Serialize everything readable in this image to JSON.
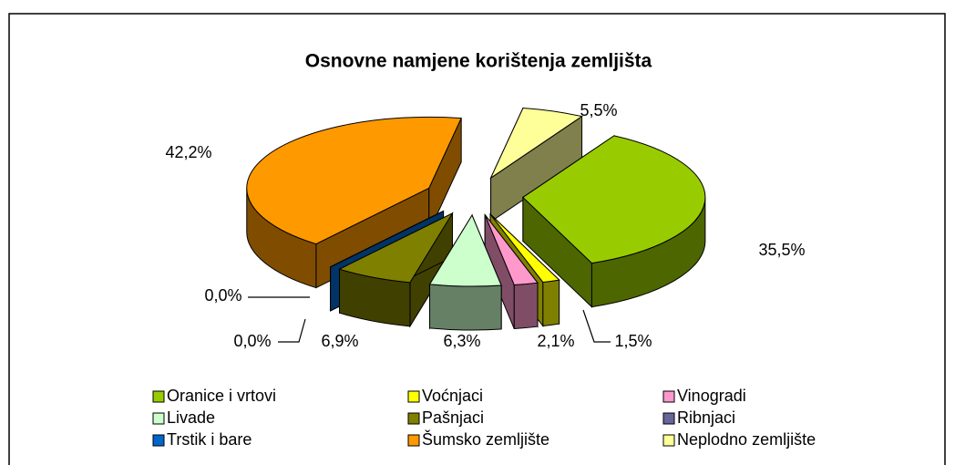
{
  "chart_data": {
    "type": "pie3d",
    "title": "Osnovne namjene korištenja zemljišta",
    "categories": [
      "Oranice i vrtovi",
      "Voćnjaci",
      "Vinogradi",
      "Livade",
      "Pašnjaci",
      "Ribnjaci",
      "Trstik i bare",
      "Šumsko zemljište",
      "Neplodno zemljište"
    ],
    "values": [
      35.5,
      1.5,
      2.1,
      6.3,
      6.9,
      0.0,
      0.0,
      42.2,
      5.5
    ],
    "value_labels": [
      "35,5%",
      "1,5%",
      "2,1%",
      "6,3%",
      "6,9%",
      "0,0%",
      "0,0%",
      "42,2%",
      "5,5%"
    ],
    "colors": [
      "#99cc00",
      "#ffff00",
      "#ff99cc",
      "#ccffcc",
      "#808000",
      "#666699",
      "#0066cc",
      "#ff9900",
      "#ffff99"
    ],
    "legend": "bottom"
  }
}
